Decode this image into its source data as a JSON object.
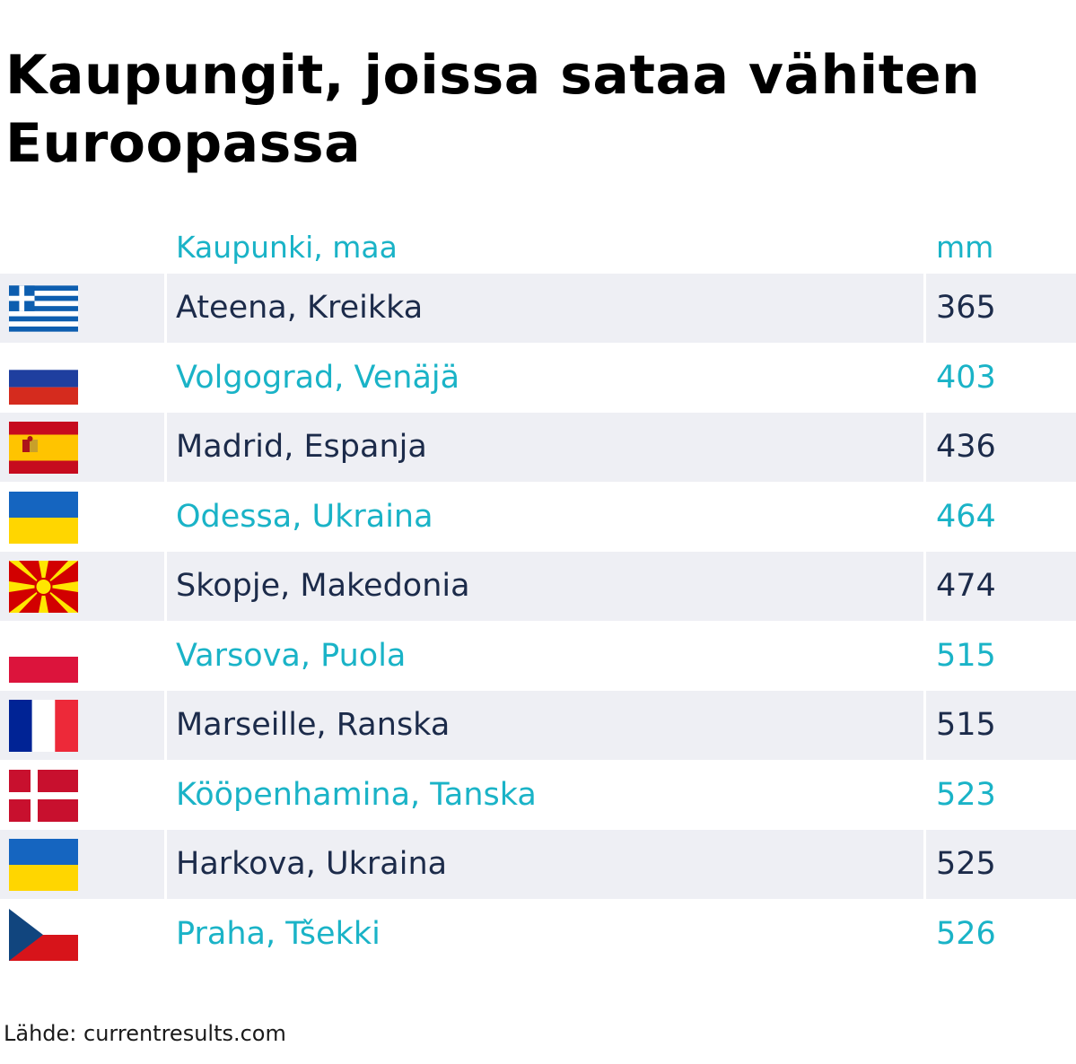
{
  "title": "Kaupungit, joissa sataa vähiten Euroopassa",
  "columns": {
    "city": "Kaupunki, maa",
    "mm": "mm"
  },
  "rows": [
    {
      "city": "Ateena, Kreikka",
      "mm": "365",
      "flag_icon": "greece-flag-icon"
    },
    {
      "city": "Volgograd, Venäjä",
      "mm": "403",
      "flag_icon": "russia-flag-icon"
    },
    {
      "city": "Madrid, Espanja",
      "mm": "436",
      "flag_icon": "spain-flag-icon"
    },
    {
      "city": "Odessa, Ukraina",
      "mm": "464",
      "flag_icon": "ukraine-flag-icon"
    },
    {
      "city": "Skopje, Makedonia",
      "mm": "474",
      "flag_icon": "north-macedonia-flag-icon"
    },
    {
      "city": "Varsova, Puola",
      "mm": "515",
      "flag_icon": "poland-flag-icon"
    },
    {
      "city": "Marseille, Ranska",
      "mm": "515",
      "flag_icon": "france-flag-icon"
    },
    {
      "city": "Kööpenhamina, Tanska",
      "mm": "523",
      "flag_icon": "denmark-flag-icon"
    },
    {
      "city": "Harkova, Ukraina",
      "mm": "525",
      "flag_icon": "ukraine-flag-icon"
    },
    {
      "city": "Praha, Tšekki",
      "mm": "526",
      "flag_icon": "czechia-flag-icon"
    }
  ],
  "source": "Lähde: currentresults.com",
  "colors": {
    "accent": "#1ab3c7",
    "dark_text": "#1c2b4a",
    "row_shade": "#eeeff4"
  },
  "chart_data": {
    "type": "table",
    "title": "Kaupungit, joissa sataa vähiten Euroopassa",
    "columns": [
      "Kaupunki, maa",
      "mm"
    ],
    "categories": [
      "Ateena, Kreikka",
      "Volgograd, Venäjä",
      "Madrid, Espanja",
      "Odessa, Ukraina",
      "Skopje, Makedonia",
      "Varsova, Puola",
      "Marseille, Ranska",
      "Kööpenhamina, Tanska",
      "Harkova, Ukraina",
      "Praha, Tšekki"
    ],
    "values": [
      365,
      403,
      436,
      464,
      474,
      515,
      515,
      523,
      525,
      526
    ]
  }
}
